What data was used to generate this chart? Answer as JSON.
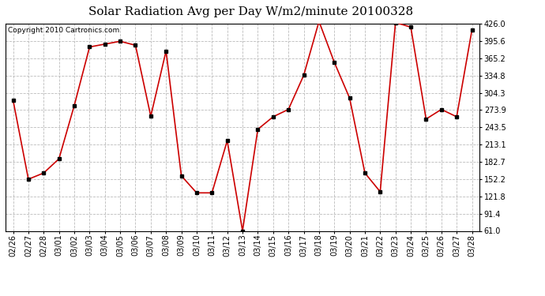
{
  "title": "Solar Radiation Avg per Day W/m2/minute 20100328",
  "copyright": "Copyright 2010 Cartronics.com",
  "dates": [
    "02/26",
    "02/27",
    "02/28",
    "03/01",
    "03/02",
    "03/03",
    "03/04",
    "03/05",
    "03/06",
    "03/07",
    "03/08",
    "03/09",
    "03/10",
    "03/11",
    "03/12",
    "03/13",
    "03/14",
    "03/15",
    "03/16",
    "03/17",
    "03/18",
    "03/19",
    "03/20",
    "03/21",
    "03/22",
    "03/23",
    "03/24",
    "03/25",
    "03/26",
    "03/27",
    "03/28"
  ],
  "values": [
    291,
    152,
    163,
    188,
    282,
    385,
    390,
    395,
    388,
    263,
    378,
    158,
    128,
    128,
    220,
    61,
    240,
    262,
    275,
    335,
    430,
    358,
    295,
    163,
    130,
    428,
    420,
    258,
    275,
    262,
    415
  ],
  "ylim": [
    61.0,
    426.0
  ],
  "yticks": [
    61.0,
    91.4,
    121.8,
    152.2,
    182.7,
    213.1,
    243.5,
    273.9,
    304.3,
    334.8,
    365.2,
    395.6,
    426.0
  ],
  "line_color": "#cc0000",
  "marker_color": "#000000",
  "bg_color": "#ffffff",
  "grid_color": "#bbbbbb",
  "title_fontsize": 11,
  "tick_fontsize": 7,
  "copyright_fontsize": 6.5
}
